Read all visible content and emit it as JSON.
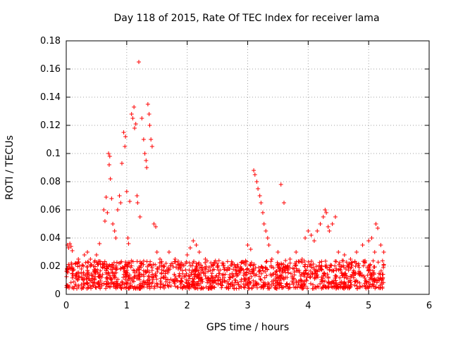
{
  "chart_data": {
    "type": "scatter",
    "title": "Day 118 of 2015, Rate Of TEC Index for receiver lama",
    "xlabel": "GPS time / hours",
    "ylabel": "ROTI / TECUs",
    "xlim": [
      0,
      6
    ],
    "ylim": [
      0,
      0.18
    ],
    "xticks": [
      0,
      1,
      2,
      3,
      4,
      5,
      6
    ],
    "yticks": [
      0,
      0.02,
      0.04,
      0.06,
      0.08,
      0.1,
      0.12,
      0.14,
      0.16,
      0.18
    ],
    "xtick_labels": [
      "0",
      "1",
      "2",
      "3",
      "4",
      "5",
      "6"
    ],
    "ytick_labels": [
      "0",
      "0.02",
      "0.04",
      "0.06",
      "0.08",
      "0.1",
      "0.12",
      "0.14",
      "0.16",
      "0.18"
    ],
    "grid": true,
    "marker": "+",
    "color": "#ff0000",
    "series": [
      {
        "name": "ROTI",
        "x": [
          0.02,
          0.04,
          0.06,
          0.08,
          0.1,
          0.05,
          0.07,
          0.15,
          0.2,
          0.25,
          0.3,
          0.35,
          0.4,
          0.45,
          0.5,
          0.55,
          0.6,
          0.62,
          0.64,
          0.66,
          0.68,
          0.7,
          0.71,
          0.72,
          0.73,
          0.75,
          0.77,
          0.8,
          0.82,
          0.85,
          0.88,
          0.9,
          0.92,
          0.95,
          0.97,
          0.98,
          1.0,
          1.02,
          1.03,
          1.05,
          1.08,
          1.1,
          1.12,
          1.13,
          1.15,
          1.17,
          1.18,
          1.2,
          1.22,
          1.25,
          1.28,
          1.3,
          1.32,
          1.33,
          1.35,
          1.37,
          1.38,
          1.4,
          1.42,
          1.45,
          1.48,
          1.5,
          1.55,
          1.6,
          1.65,
          1.7,
          1.8,
          1.9,
          2.0,
          2.05,
          2.1,
          2.15,
          2.2,
          2.3,
          2.4,
          2.5,
          2.6,
          2.7,
          2.8,
          2.9,
          3.0,
          3.05,
          3.1,
          3.12,
          3.15,
          3.17,
          3.2,
          3.22,
          3.25,
          3.27,
          3.3,
          3.33,
          3.35,
          3.4,
          3.5,
          3.55,
          3.6,
          3.7,
          3.8,
          3.9,
          3.95,
          4.0,
          4.05,
          4.1,
          4.15,
          4.2,
          4.25,
          4.28,
          4.3,
          4.33,
          4.35,
          4.4,
          4.45,
          4.5,
          4.6,
          4.7,
          4.8,
          4.9,
          5.0,
          5.05,
          5.1,
          5.12,
          5.15,
          5.2,
          5.25
        ],
        "y": [
          0.035,
          0.033,
          0.036,
          0.034,
          0.031,
          0.02,
          0.018,
          0.022,
          0.025,
          0.018,
          0.028,
          0.03,
          0.025,
          0.02,
          0.028,
          0.036,
          0.022,
          0.06,
          0.052,
          0.069,
          0.058,
          0.1,
          0.092,
          0.098,
          0.082,
          0.068,
          0.05,
          0.045,
          0.04,
          0.06,
          0.07,
          0.065,
          0.093,
          0.115,
          0.105,
          0.112,
          0.073,
          0.04,
          0.036,
          0.066,
          0.128,
          0.125,
          0.133,
          0.118,
          0.121,
          0.07,
          0.065,
          0.165,
          0.055,
          0.125,
          0.11,
          0.1,
          0.095,
          0.09,
          0.135,
          0.128,
          0.12,
          0.11,
          0.105,
          0.05,
          0.048,
          0.03,
          0.025,
          0.02,
          0.022,
          0.03,
          0.025,
          0.02,
          0.028,
          0.033,
          0.038,
          0.035,
          0.03,
          0.025,
          0.02,
          0.02,
          0.022,
          0.018,
          0.02,
          0.018,
          0.035,
          0.032,
          0.088,
          0.085,
          0.08,
          0.075,
          0.07,
          0.065,
          0.058,
          0.05,
          0.045,
          0.04,
          0.035,
          0.025,
          0.03,
          0.078,
          0.065,
          0.025,
          0.03,
          0.025,
          0.04,
          0.045,
          0.042,
          0.038,
          0.045,
          0.05,
          0.055,
          0.06,
          0.058,
          0.048,
          0.045,
          0.05,
          0.055,
          0.03,
          0.028,
          0.025,
          0.03,
          0.035,
          0.038,
          0.04,
          0.03,
          0.05,
          0.047,
          0.035,
          0.03
        ]
      }
    ],
    "baseline_band": {
      "x_range": [
        0.0,
        5.25
      ],
      "y_range": [
        0.004,
        0.024
      ]
    }
  }
}
